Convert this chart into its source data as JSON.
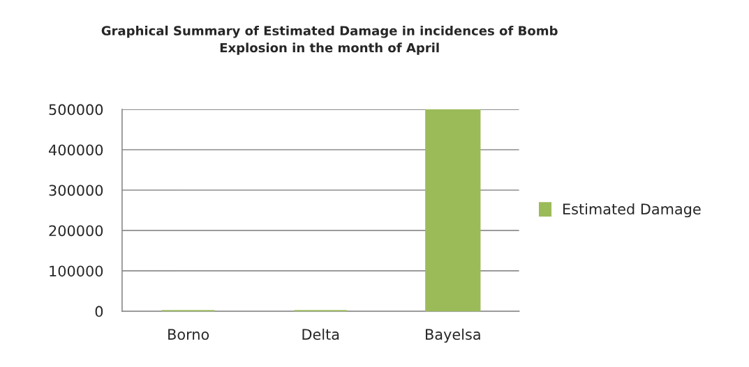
{
  "chart_data": {
    "type": "bar",
    "title": "Graphical Summary of Estimated Damage in incidences of Bomb\nExplosion in the month of April",
    "categories": [
      "Borno",
      "Delta",
      "Bayelsa"
    ],
    "series": [
      {
        "name": "Estimated Damage",
        "color": "#9bbb59",
        "values": [
          0,
          0,
          500000
        ]
      }
    ],
    "ylim": [
      0,
      500000
    ],
    "yticks": [
      0,
      100000,
      200000,
      300000,
      400000,
      500000
    ],
    "grid": "y",
    "legend": "right"
  }
}
